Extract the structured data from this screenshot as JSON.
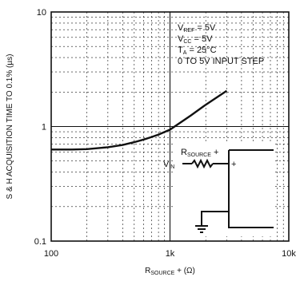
{
  "chart_data": {
    "type": "line",
    "title": "",
    "xlabel_main": "R",
    "xlabel_sub": "SOURCE",
    "xlabel_rest": " + (Ω)",
    "ylabel": "S & H ACQUISITION TIME TO 0.1% (µs)",
    "xscale": "log",
    "yscale": "log",
    "xlim": [
      100,
      10000
    ],
    "ylim": [
      0.1,
      10
    ],
    "grid": true,
    "x_ticks": [
      {
        "value": 100,
        "label": "100"
      },
      {
        "value": 1000,
        "label": "1k"
      },
      {
        "value": 10000,
        "label": "10k"
      }
    ],
    "y_ticks": [
      {
        "value": 10,
        "label": "10"
      },
      {
        "value": 1,
        "label": "1"
      },
      {
        "value": 0.1,
        "label": "0.1"
      }
    ],
    "series": [
      {
        "x": [
          100,
          150,
          200,
          300,
          400,
          500,
          600,
          700,
          800,
          1000,
          1500,
          2000,
          3000
        ],
        "y": [
          0.63,
          0.63,
          0.635,
          0.66,
          0.69,
          0.73,
          0.77,
          0.81,
          0.85,
          0.94,
          1.25,
          1.55,
          2.05
        ]
      }
    ],
    "annotations": [
      {
        "main": "V",
        "sub": "REF",
        "rest": " = 5V"
      },
      {
        "main": "V",
        "sub": "CC",
        "rest": " = 5V"
      },
      {
        "main": "T",
        "sub": "A",
        "rest": " = 25°C"
      },
      {
        "main": "0 TO 5V INPUT STEP",
        "sub": "",
        "rest": ""
      }
    ],
    "schematic": {
      "rsource_main": "R",
      "rsource_sub": "SOURCE",
      "rsource_rest": " +",
      "vin_main": "V",
      "vin_sub": "IN",
      "plus": "+"
    }
  }
}
